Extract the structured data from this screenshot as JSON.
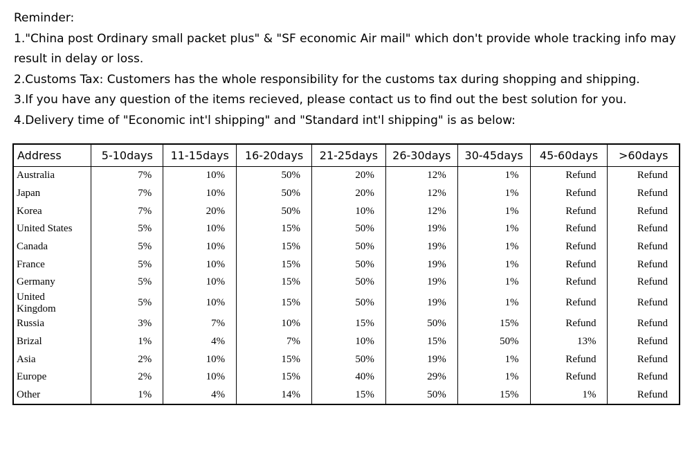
{
  "reminder": {
    "title": "Reminder:",
    "lines": [
      "1.\"China post Ordinary small packet plus\" & \"SF economic Air mail\" which don't provide whole tracking info may result in delay or loss.",
      "2.Customs Tax: Customers has the whole responsibility for the customs tax during shopping and shipping.",
      "3.If you have any question of the items recieved, please contact us to find out the best solution for you.",
      "4.Delivery time of \"Economic int'l shipping\" and \"Standard int'l shipping\" is as below:"
    ]
  },
  "table": {
    "header": [
      "Address",
      "5-10days",
      "11-15days",
      "16-20days",
      "21-25days",
      "26-30days",
      "30-45days",
      "45-60days",
      ">60days"
    ],
    "rows": [
      [
        "Australia",
        "7%",
        "10%",
        "50%",
        "20%",
        "12%",
        "1%",
        "Refund",
        "Refund"
      ],
      [
        "Japan",
        "7%",
        "10%",
        "50%",
        "20%",
        "12%",
        "1%",
        "Refund",
        "Refund"
      ],
      [
        "Korea",
        "7%",
        "20%",
        "50%",
        "10%",
        "12%",
        "1%",
        "Refund",
        "Refund"
      ],
      [
        "United States",
        "5%",
        "10%",
        "15%",
        "50%",
        "19%",
        "1%",
        "Refund",
        "Refund"
      ],
      [
        "Canada",
        "5%",
        "10%",
        "15%",
        "50%",
        "19%",
        "1%",
        "Refund",
        "Refund"
      ],
      [
        "France",
        "5%",
        "10%",
        "15%",
        "50%",
        "19%",
        "1%",
        "Refund",
        "Refund"
      ],
      [
        "Germany",
        "5%",
        "10%",
        "15%",
        "50%",
        "19%",
        "1%",
        "Refund",
        "Refund"
      ],
      [
        "United Kingdom",
        "5%",
        "10%",
        "15%",
        "50%",
        "19%",
        "1%",
        "Refund",
        "Refund"
      ],
      [
        "Russia",
        "3%",
        "7%",
        "10%",
        "15%",
        "50%",
        "15%",
        "Refund",
        "Refund"
      ],
      [
        "Brizal",
        "1%",
        "4%",
        "7%",
        "10%",
        "15%",
        "50%",
        "13%",
        "Refund"
      ],
      [
        "Asia",
        "2%",
        "10%",
        "15%",
        "50%",
        "19%",
        "1%",
        "Refund",
        "Refund"
      ],
      [
        "Europe",
        "2%",
        "10%",
        "15%",
        "40%",
        "29%",
        "1%",
        "Refund",
        "Refund"
      ],
      [
        "Other",
        "1%",
        "4%",
        "14%",
        "15%",
        "50%",
        "15%",
        "1%",
        "Refund"
      ]
    ]
  }
}
